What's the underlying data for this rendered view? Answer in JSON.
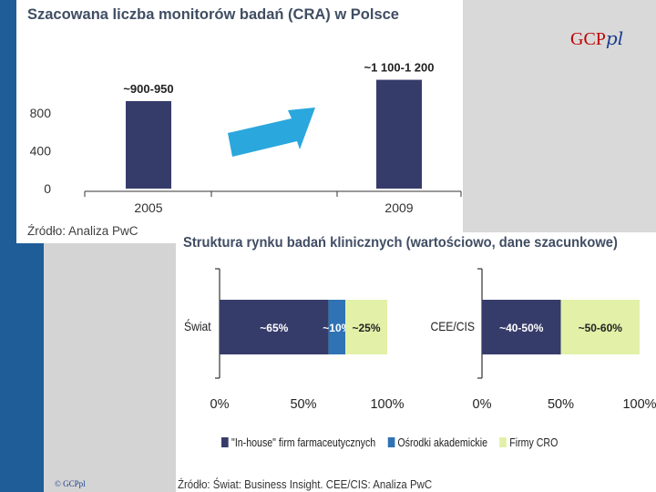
{
  "logo": {
    "main": "GCP",
    "suffix": "pl"
  },
  "footer_logo": "© GCPpl",
  "colors": {
    "navy": "#363c6a",
    "blue": "#2f73b5",
    "green": "#e2f0a8",
    "arrow": "#2aa7dd",
    "band": "#1f5d99"
  },
  "panel1": {
    "title": "Szacowana liczba monitorów badań (CRA) w Polsce",
    "source": "Źródło: Analiza PwC"
  },
  "panel2": {
    "title": "Struktura rynku badań klinicznych (wartościowo, dane szacunkowe)",
    "source": "Źródło: Świat: Business Insight. CEE/CIS: Analiza PwC",
    "legend": [
      "\"In-house\" firm farmaceutycznych",
      "Ośrodki akademickie",
      "Firmy CRO"
    ]
  },
  "chart_data": [
    {
      "type": "bar",
      "title": "Szacowana liczba monitorów badań (CRA) w Polsce",
      "categories": [
        "2005",
        "2009"
      ],
      "values": [
        925,
        1150
      ],
      "data_labels": [
        "~900-950",
        "~1 100-1 200"
      ],
      "yticks": [
        0,
        400,
        800
      ],
      "ylim": [
        0,
        1300
      ],
      "annotation": "arrow-up-right"
    },
    {
      "type": "bar",
      "orientation": "horizontal-stacked",
      "title": "Struktura rynku badań klinicznych (wartościowo, dane szacunkowe)",
      "panels": [
        {
          "category": "Świat",
          "segments": [
            {
              "series": "\"In-house\" firm farmaceutycznych",
              "value": 65,
              "label": "~65%"
            },
            {
              "series": "Ośrodki akademickie",
              "value": 10,
              "label": "~10%"
            },
            {
              "series": "Firmy CRO",
              "value": 25,
              "label": "~25%"
            }
          ]
        },
        {
          "category": "CEE/CIS",
          "segments": [
            {
              "series": "\"In-house\" firm farmaceutycznych",
              "value": 50,
              "label": "~40-50%"
            },
            {
              "series": "Firmy CRO",
              "value": 50,
              "label": "~50-60%"
            }
          ]
        }
      ],
      "xticks": [
        "0%",
        "50%",
        "100%"
      ],
      "xlim": [
        0,
        100
      ]
    }
  ]
}
